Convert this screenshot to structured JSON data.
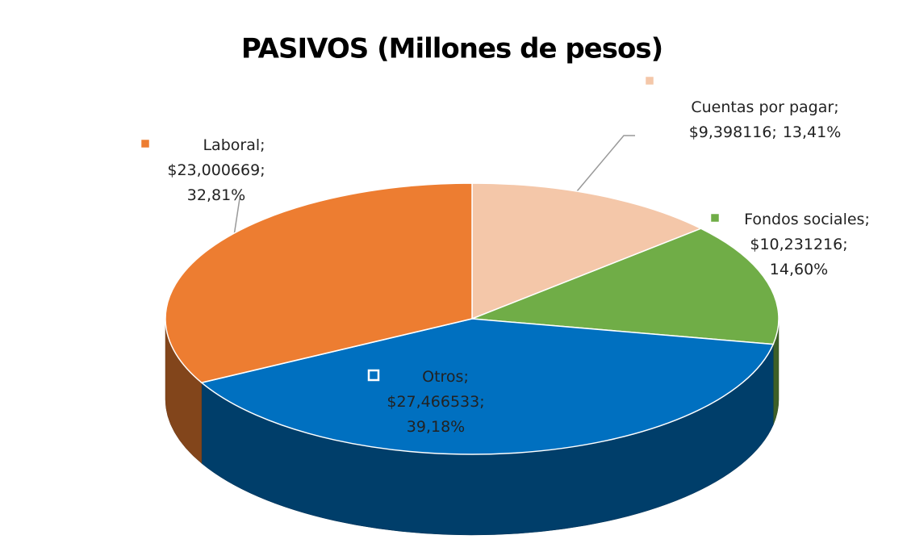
{
  "chart_data": {
    "type": "pie",
    "title": "PASIVOS (Millones de pesos)",
    "categories": [
      "Cuentas por pagar;",
      "Fondos sociales;",
      "Otros;",
      "Laboral;"
    ],
    "values": [
      13.41,
      14.6,
      39.18,
      32.81
    ],
    "value_labels": [
      "13,41%",
      "14,60%",
      "39,18%",
      "32,81%"
    ],
    "amounts": [
      9.398116,
      10.231216,
      27.466533,
      23.000669
    ],
    "amount_labels": [
      "$9,398116;",
      "$10,231216;",
      "$27,466533;",
      "$23,000669;"
    ],
    "colors": [
      "#f4c7a9",
      "#70ad47",
      "#0070c0",
      "#ed7d31"
    ],
    "three_d": true
  }
}
